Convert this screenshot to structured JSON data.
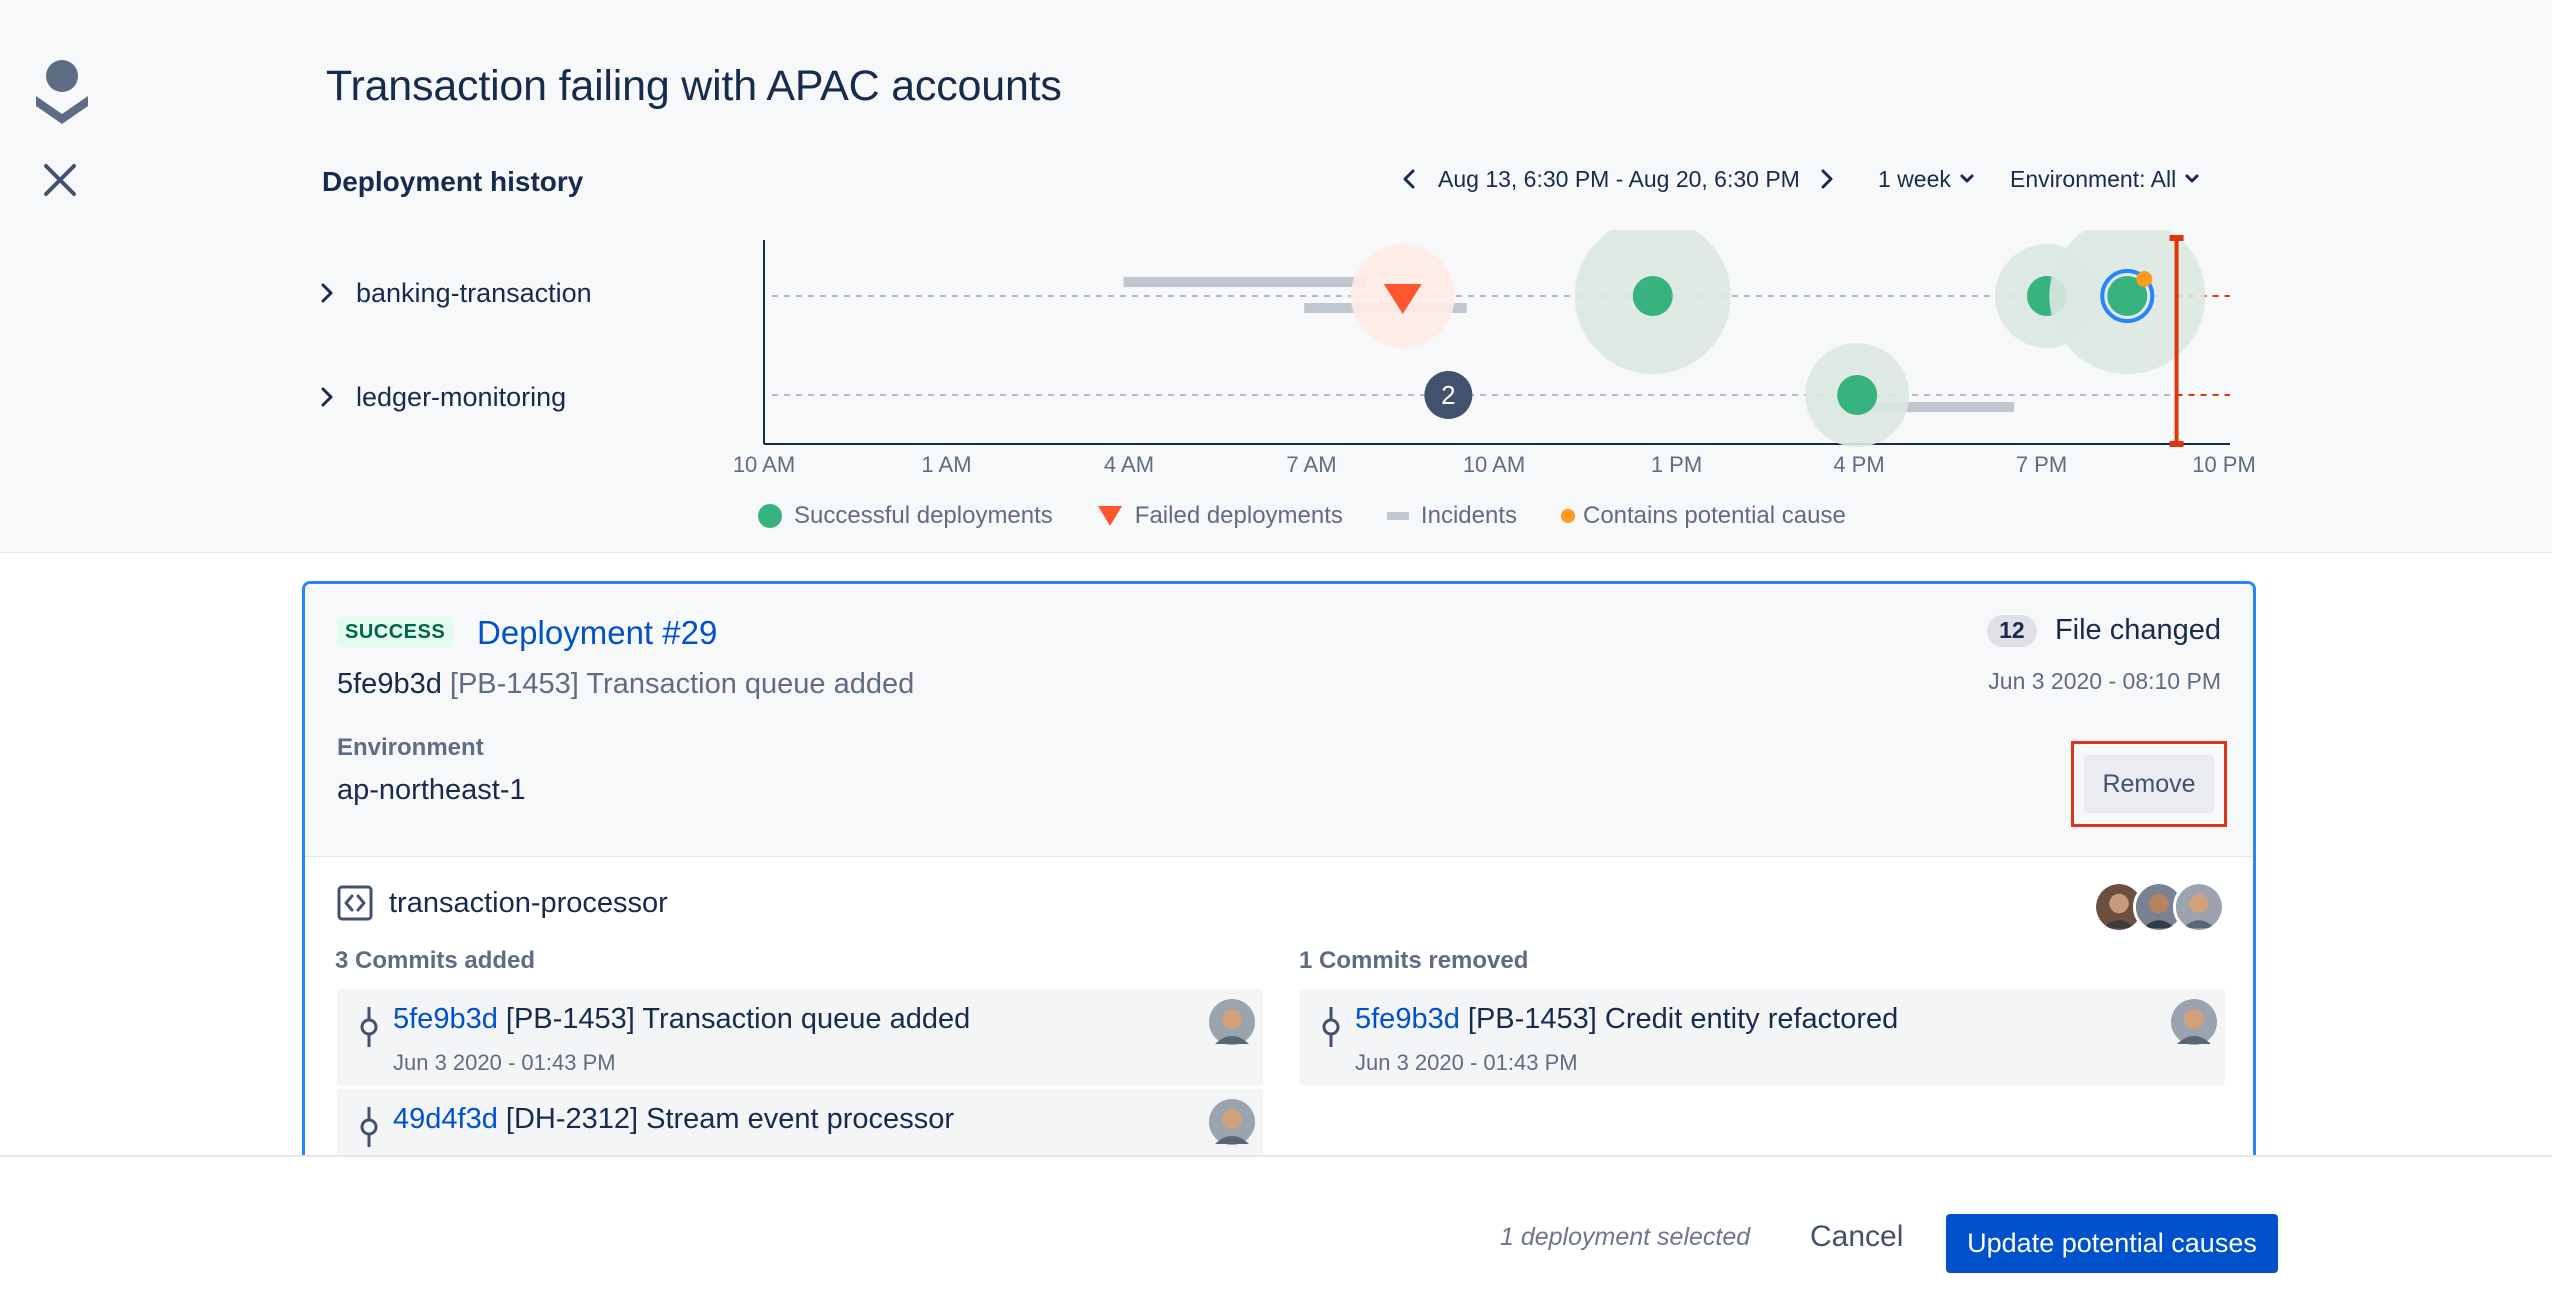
{
  "page": {
    "title": "Transaction failing with APAC accounts"
  },
  "history": {
    "title": "Deployment history",
    "range_label": "Aug 13, 6:30 PM - Aug 20, 6:30 PM",
    "period": "1 week",
    "environment": "Environment: All",
    "rows": [
      {
        "label": "banking-transaction"
      },
      {
        "label": "ledger-monitoring"
      }
    ],
    "legend": {
      "success": "Successful deployments",
      "failed": "Failed deployments",
      "incidents": "Incidents",
      "cause": "Contains potential cause"
    },
    "timeline": {
      "x_ticks": [
        "10 AM",
        "1 AM",
        "4 AM",
        "7 AM",
        "10 AM",
        "1 PM",
        "4 PM",
        "7 PM",
        "10 PM"
      ],
      "markers": [
        {
          "row": 0,
          "kind": "failed",
          "tick": 3.5,
          "halo": "small"
        },
        {
          "row": 0,
          "kind": "success",
          "tick": 4.87,
          "halo": "large"
        },
        {
          "row": 0,
          "kind": "success",
          "tick": 7.03,
          "halo": "small"
        },
        {
          "row": 0,
          "kind": "success",
          "tick": 7.47,
          "halo": "large",
          "selected": true,
          "potential_cause": true
        },
        {
          "row": 1,
          "kind": "group",
          "tick": 3.75,
          "count": "2"
        },
        {
          "row": 1,
          "kind": "success",
          "tick": 5.99,
          "halo": "small"
        }
      ],
      "incidents": [
        {
          "row": 0,
          "start_tick": 1.97,
          "end_tick": 3.3,
          "lane": "upper"
        },
        {
          "row": 0,
          "start_tick": 2.96,
          "end_tick": 3.85,
          "lane": "lower"
        },
        {
          "row": 1,
          "start_tick": 5.95,
          "end_tick": 6.85,
          "lane": "lower"
        }
      ],
      "current_tick": 7.74,
      "colors": {
        "success": "#36B37E",
        "failed": "#FF5630",
        "incident": "#C1C7D0",
        "cause": "#FF991F",
        "selected": "#2684FF",
        "now": "#DE350B",
        "group": "#42526E"
      }
    }
  },
  "card": {
    "status": "SUCCESS",
    "title": "Deployment #29",
    "files_count": "12",
    "files_label": "File changed",
    "date": "Jun 3 2020 - 08:10 PM",
    "commit_hash": "5fe9b3d",
    "commit_message": "[PB-1453] Transaction queue added",
    "environment_label": "Environment",
    "environment_value": "ap-northeast-1",
    "remove_label": "Remove",
    "repo": "transaction-processor",
    "added_title": "3 Commits added",
    "removed_title": "1 Commits removed",
    "added": [
      {
        "hash": "5fe9b3d",
        "message": "[PB-1453] Transaction queue added",
        "date": "Jun 3 2020 - 01:43 PM"
      },
      {
        "hash": "49d4f3d",
        "message": "[DH-2312] Stream event processor",
        "date": ""
      }
    ],
    "removed": [
      {
        "hash": "5fe9b3d",
        "message": "[PB-1453] Credit entity refactored",
        "date": "Jun 3 2020 - 01:43 PM"
      }
    ]
  },
  "footer": {
    "selection": "1 deployment selected",
    "cancel": "Cancel",
    "primary": "Update potential causes"
  }
}
